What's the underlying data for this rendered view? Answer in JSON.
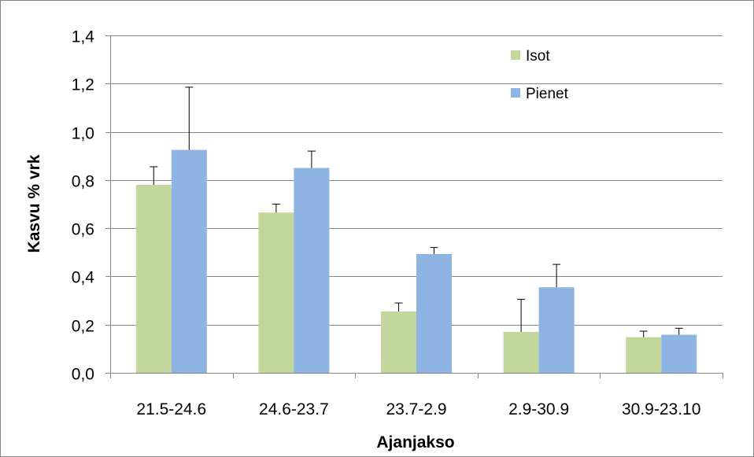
{
  "colors": {
    "isot": "#c3d69b",
    "pienet": "#8eb4e3",
    "grid": "#868686",
    "error": "#000000"
  },
  "chart_data": {
    "type": "bar",
    "title": "",
    "xlabel": "Ajanjakso",
    "ylabel": "Kasvu % vrk",
    "ylim": [
      0,
      1.4
    ],
    "ystep": 0.2,
    "grid": true,
    "legend_position": "top-right",
    "yticks": [
      "0,0",
      "0,2",
      "0,4",
      "0,6",
      "0,8",
      "1,0",
      "1,2",
      "1,4"
    ],
    "categories": [
      "21.5-24.6",
      "24.6-23.7",
      "23.7-2.9",
      "2.9-30.9",
      "30.9-23.10"
    ],
    "series": [
      {
        "name": "Isot",
        "color_key": "isot",
        "values": [
          0.78,
          0.665,
          0.255,
          0.17,
          0.148
        ],
        "error": [
          0.075,
          0.035,
          0.035,
          0.135,
          0.025
        ]
      },
      {
        "name": "Pienet",
        "color_key": "pienet",
        "values": [
          0.925,
          0.85,
          0.493,
          0.355,
          0.158
        ],
        "error": [
          0.26,
          0.07,
          0.027,
          0.095,
          0.027
        ]
      }
    ]
  }
}
